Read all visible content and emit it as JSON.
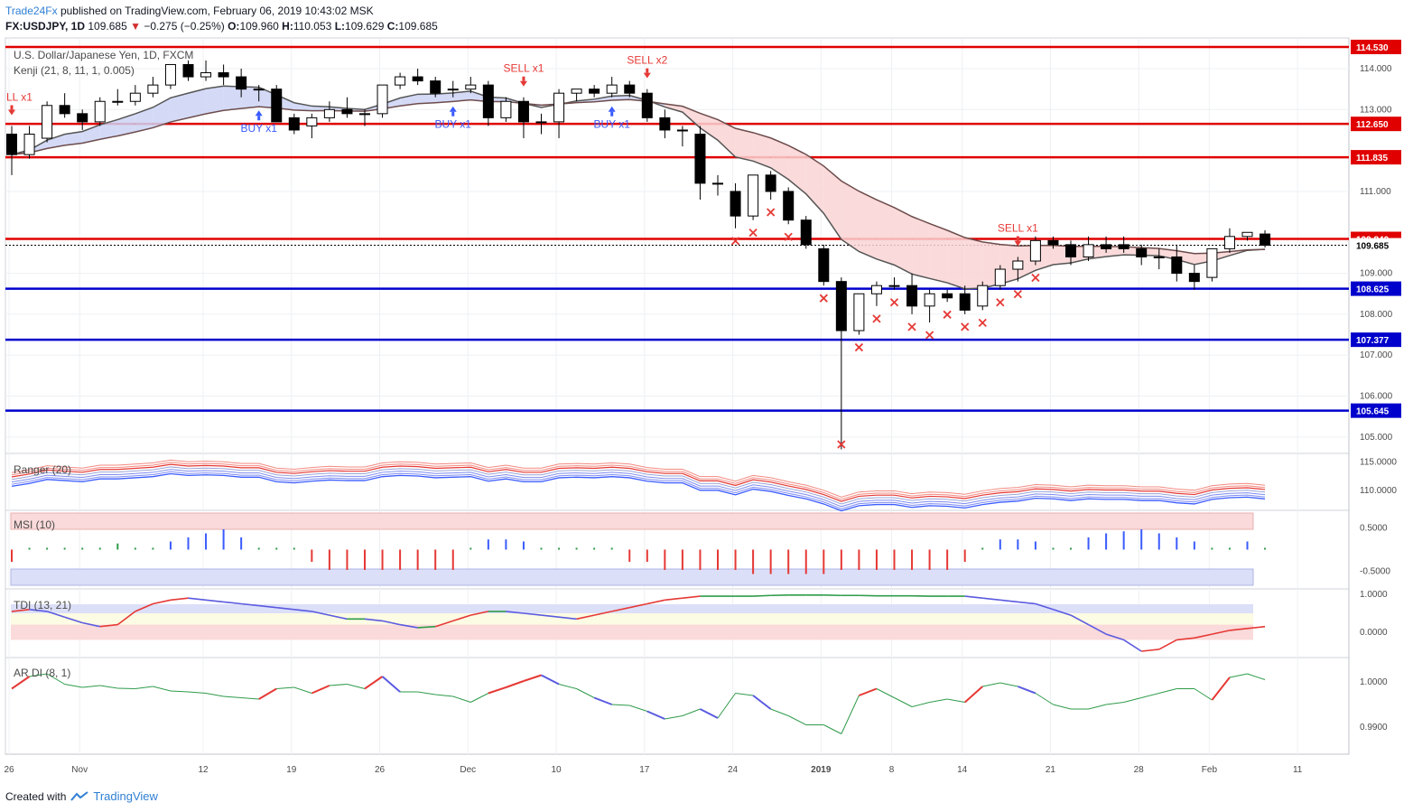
{
  "header": {
    "brand": "Trade24Fx",
    "published": "published on TradingView.com, February 06, 2019 10:43:02 MSK",
    "symbol": "FX:USDJPY, 1D",
    "last": "109.685",
    "change": "−0.275 (−0.25%)",
    "o_label": "O:",
    "o": "109.960",
    "h_label": "H:",
    "h": "110.053",
    "l_label": "L:",
    "l": "109.629",
    "c_label": "C:",
    "c": "109.685"
  },
  "legend": {
    "main_title": "U.S. Dollar/Japanese Yen, 1D, FXCM",
    "kenji": "Kenji (21, 8, 11, 1, 0.005)",
    "ranger": "Ranger (20)",
    "msi": "MSI (10)",
    "tdi": "TDI (13, 21)",
    "ardi": "AR DI (8, 1)"
  },
  "footer": {
    "created_with": "Created with",
    "tradingview": "TradingView"
  },
  "colors": {
    "up_candle": "#ffffff",
    "down_candle": "#000000",
    "resistance": "#e00000",
    "support": "#0000cc",
    "sell": "#e53935",
    "buy": "#3a5bff",
    "band_upper": "#f28b82",
    "band_lower": "#7f8cf0"
  },
  "chart_data": {
    "type": "candlestick",
    "symbol": "U.S. Dollar/Japanese Yen, 1D, FXCM",
    "ylim": [
      104.5,
      115.0
    ],
    "price_ticks": [
      "114.000",
      "113.000",
      "111.000",
      "109.000",
      "108.000",
      "107.000",
      "106.000",
      "105.000"
    ],
    "x_ticks": [
      "26",
      "Nov",
      "12",
      "19",
      "26",
      "Dec",
      "10",
      "17",
      "24",
      "2019",
      "8",
      "14",
      "21",
      "28",
      "Feb",
      "11"
    ],
    "horizontal_levels": [
      {
        "value": 114.53,
        "label": "114.530",
        "kind": "resistance"
      },
      {
        "value": 112.65,
        "label": "112.650",
        "kind": "resistance"
      },
      {
        "value": 111.835,
        "label": "111.835",
        "kind": "resistance"
      },
      {
        "value": 109.84,
        "label": "109.840",
        "kind": "resistance"
      },
      {
        "value": 109.685,
        "label": "109.685",
        "kind": "last"
      },
      {
        "value": 108.625,
        "label": "108.625",
        "kind": "support"
      },
      {
        "value": 107.377,
        "label": "107.377",
        "kind": "support"
      },
      {
        "value": 105.645,
        "label": "105.645",
        "kind": "support"
      }
    ],
    "signals": [
      {
        "text": "LL x1",
        "type": "sell",
        "bar": 0
      },
      {
        "text": "BUY x1",
        "type": "buy",
        "bar": 14
      },
      {
        "text": "SELL x1",
        "type": "sell",
        "bar": 29
      },
      {
        "text": "BUY x1",
        "type": "buy",
        "bar": 25
      },
      {
        "text": "SELL x2",
        "type": "sell",
        "bar": 36
      },
      {
        "text": "BUY x1",
        "type": "buy",
        "bar": 34
      },
      {
        "text": "SELL x1",
        "type": "sell",
        "bar": 57
      }
    ],
    "candles": [
      {
        "o": 112.4,
        "h": 112.6,
        "l": 111.4,
        "c": 111.9
      },
      {
        "o": 111.9,
        "h": 112.6,
        "l": 111.8,
        "c": 112.4
      },
      {
        "o": 112.3,
        "h": 113.2,
        "l": 112.2,
        "c": 113.1
      },
      {
        "o": 113.1,
        "h": 113.4,
        "l": 112.8,
        "c": 112.9
      },
      {
        "o": 112.9,
        "h": 113.0,
        "l": 112.5,
        "c": 112.7
      },
      {
        "o": 112.7,
        "h": 113.3,
        "l": 112.6,
        "c": 113.2
      },
      {
        "o": 113.2,
        "h": 113.5,
        "l": 113.1,
        "c": 113.2
      },
      {
        "o": 113.2,
        "h": 113.6,
        "l": 113.1,
        "c": 113.4
      },
      {
        "o": 113.4,
        "h": 113.8,
        "l": 113.3,
        "c": 113.6
      },
      {
        "o": 113.6,
        "h": 114.1,
        "l": 113.5,
        "c": 114.1
      },
      {
        "o": 114.1,
        "h": 114.2,
        "l": 113.7,
        "c": 113.8
      },
      {
        "o": 113.8,
        "h": 114.2,
        "l": 113.7,
        "c": 113.9
      },
      {
        "o": 113.9,
        "h": 114.1,
        "l": 113.6,
        "c": 113.8
      },
      {
        "o": 113.8,
        "h": 114.0,
        "l": 113.3,
        "c": 113.5
      },
      {
        "o": 113.5,
        "h": 113.6,
        "l": 113.2,
        "c": 113.5
      },
      {
        "o": 113.5,
        "h": 113.6,
        "l": 112.8,
        "c": 112.7
      },
      {
        "o": 112.8,
        "h": 112.9,
        "l": 112.4,
        "c": 112.5
      },
      {
        "o": 112.6,
        "h": 112.9,
        "l": 112.3,
        "c": 112.8
      },
      {
        "o": 112.8,
        "h": 113.2,
        "l": 112.7,
        "c": 113.0
      },
      {
        "o": 113.0,
        "h": 113.3,
        "l": 112.8,
        "c": 112.9
      },
      {
        "o": 112.9,
        "h": 113.0,
        "l": 112.6,
        "c": 112.9
      },
      {
        "o": 112.9,
        "h": 113.6,
        "l": 112.8,
        "c": 113.6
      },
      {
        "o": 113.6,
        "h": 113.9,
        "l": 113.5,
        "c": 113.8
      },
      {
        "o": 113.8,
        "h": 114.0,
        "l": 113.6,
        "c": 113.7
      },
      {
        "o": 113.7,
        "h": 113.8,
        "l": 113.3,
        "c": 113.4
      },
      {
        "o": 113.5,
        "h": 113.7,
        "l": 113.3,
        "c": 113.5
      },
      {
        "o": 113.5,
        "h": 113.8,
        "l": 113.4,
        "c": 113.6
      },
      {
        "o": 113.6,
        "h": 113.7,
        "l": 112.6,
        "c": 112.8
      },
      {
        "o": 112.8,
        "h": 113.3,
        "l": 112.7,
        "c": 113.2
      },
      {
        "o": 113.2,
        "h": 113.3,
        "l": 112.3,
        "c": 112.7
      },
      {
        "o": 112.7,
        "h": 112.9,
        "l": 112.4,
        "c": 112.7
      },
      {
        "o": 112.7,
        "h": 113.5,
        "l": 112.3,
        "c": 113.4
      },
      {
        "o": 113.4,
        "h": 113.5,
        "l": 113.2,
        "c": 113.5
      },
      {
        "o": 113.5,
        "h": 113.6,
        "l": 113.3,
        "c": 113.4
      },
      {
        "o": 113.4,
        "h": 113.8,
        "l": 113.3,
        "c": 113.6
      },
      {
        "o": 113.6,
        "h": 113.7,
        "l": 113.3,
        "c": 113.4
      },
      {
        "o": 113.4,
        "h": 113.5,
        "l": 112.7,
        "c": 112.8
      },
      {
        "o": 112.8,
        "h": 113.0,
        "l": 112.3,
        "c": 112.5
      },
      {
        "o": 112.5,
        "h": 112.6,
        "l": 112.1,
        "c": 112.5
      },
      {
        "o": 112.4,
        "h": 112.6,
        "l": 110.8,
        "c": 111.2
      },
      {
        "o": 111.2,
        "h": 111.4,
        "l": 110.9,
        "c": 111.2
      },
      {
        "o": 111.0,
        "h": 111.2,
        "l": 110.1,
        "c": 110.4
      },
      {
        "o": 110.4,
        "h": 111.4,
        "l": 110.3,
        "c": 111.4
      },
      {
        "o": 111.4,
        "h": 111.5,
        "l": 110.8,
        "c": 111.0
      },
      {
        "o": 111.0,
        "h": 111.1,
        "l": 110.2,
        "c": 110.3
      },
      {
        "o": 110.3,
        "h": 110.4,
        "l": 109.6,
        "c": 109.7
      },
      {
        "o": 109.6,
        "h": 109.7,
        "l": 108.7,
        "c": 108.8
      },
      {
        "o": 108.8,
        "h": 108.9,
        "l": 104.7,
        "c": 107.6
      },
      {
        "o": 107.6,
        "h": 108.5,
        "l": 107.5,
        "c": 108.5
      },
      {
        "o": 108.5,
        "h": 108.8,
        "l": 108.2,
        "c": 108.7
      },
      {
        "o": 108.7,
        "h": 108.9,
        "l": 108.6,
        "c": 108.7
      },
      {
        "o": 108.7,
        "h": 109.0,
        "l": 108.0,
        "c": 108.2
      },
      {
        "o": 108.2,
        "h": 108.6,
        "l": 107.8,
        "c": 108.5
      },
      {
        "o": 108.5,
        "h": 108.6,
        "l": 108.3,
        "c": 108.4
      },
      {
        "o": 108.5,
        "h": 108.7,
        "l": 108.0,
        "c": 108.1
      },
      {
        "o": 108.2,
        "h": 108.8,
        "l": 108.1,
        "c": 108.7
      },
      {
        "o": 108.7,
        "h": 109.2,
        "l": 108.6,
        "c": 109.1
      },
      {
        "o": 109.1,
        "h": 109.4,
        "l": 108.8,
        "c": 109.3
      },
      {
        "o": 109.3,
        "h": 109.9,
        "l": 109.2,
        "c": 109.8
      },
      {
        "o": 109.8,
        "h": 109.9,
        "l": 109.6,
        "c": 109.7
      },
      {
        "o": 109.7,
        "h": 109.8,
        "l": 109.2,
        "c": 109.4
      },
      {
        "o": 109.4,
        "h": 109.9,
        "l": 109.3,
        "c": 109.7
      },
      {
        "o": 109.7,
        "h": 109.9,
        "l": 109.5,
        "c": 109.6
      },
      {
        "o": 109.7,
        "h": 109.9,
        "l": 109.5,
        "c": 109.6
      },
      {
        "o": 109.6,
        "h": 109.7,
        "l": 109.2,
        "c": 109.4
      },
      {
        "o": 109.4,
        "h": 109.6,
        "l": 109.1,
        "c": 109.4
      },
      {
        "o": 109.4,
        "h": 109.7,
        "l": 108.8,
        "c": 109.0
      },
      {
        "o": 109.0,
        "h": 109.2,
        "l": 108.6,
        "c": 108.8
      },
      {
        "o": 108.9,
        "h": 109.6,
        "l": 108.8,
        "c": 109.6
      },
      {
        "o": 109.6,
        "h": 110.1,
        "l": 109.5,
        "c": 109.9
      },
      {
        "o": 109.9,
        "h": 110.0,
        "l": 109.8,
        "c": 110.0
      },
      {
        "o": 109.96,
        "h": 110.053,
        "l": 109.629,
        "c": 109.685
      }
    ],
    "panels": [
      {
        "name": "Ranger (20)",
        "ticks": [
          "115.0000",
          "110.0000"
        ]
      },
      {
        "name": "MSI (10)",
        "ticks": [
          "0.5000",
          "-0.5000"
        ]
      },
      {
        "name": "TDI (13, 21)",
        "ticks": [
          "1.0000",
          "0.0000"
        ]
      },
      {
        "name": "AR DI (8, 1)",
        "ticks": [
          "1.0000",
          "0.9900"
        ]
      }
    ],
    "msi": [
      -0.3,
      0.1,
      0.05,
      0,
      0.05,
      0.1,
      0.15,
      0.1,
      0.1,
      0.2,
      0.3,
      0.4,
      0.5,
      0.3,
      0,
      0.05,
      0.05,
      -0.3,
      -0.5,
      -0.5,
      -0.5,
      -0.5,
      -0.5,
      -0.5,
      -0.5,
      -0.5,
      0.05,
      0.25,
      0.25,
      0.2,
      0.05,
      0.05,
      0.05,
      0.05,
      0.1,
      -0.3,
      -0.3,
      -0.5,
      -0.5,
      -0.5,
      -0.5,
      -0.5,
      -0.6,
      -0.6,
      -0.6,
      -0.6,
      -0.6,
      -0.5,
      -0.5,
      -0.5,
      -0.5,
      -0.5,
      -0.5,
      -0.5,
      -0.3,
      0.05,
      0.25,
      0.25,
      0.2,
      0,
      0,
      0.3,
      0.4,
      0.45,
      0.5,
      0.4,
      0.3,
      0.2,
      0,
      0.1,
      0.2,
      0.05
    ],
    "tdi": [
      0.55,
      0.6,
      0.55,
      0.4,
      0.25,
      0.15,
      0.2,
      0.55,
      0.75,
      0.85,
      0.9,
      0.85,
      0.8,
      0.75,
      0.7,
      0.65,
      0.6,
      0.55,
      0.45,
      0.35,
      0.35,
      0.3,
      0.2,
      0.12,
      0.15,
      0.3,
      0.45,
      0.55,
      0.55,
      0.5,
      0.45,
      0.4,
      0.35,
      0.45,
      0.55,
      0.65,
      0.75,
      0.85,
      0.9,
      0.95,
      0.95,
      0.95,
      0.95,
      0.97,
      0.98,
      0.98,
      0.98,
      0.97,
      0.97,
      0.96,
      0.96,
      0.96,
      0.95,
      0.95,
      0.95,
      0.9,
      0.85,
      0.8,
      0.75,
      0.6,
      0.45,
      0.2,
      -0.05,
      -0.2,
      -0.5,
      -0.45,
      -0.2,
      -0.15,
      -0.05,
      0.05,
      0.1,
      0.15
    ],
    "ardi": [
      0.9985,
      1.0012,
      1.0018,
      0.9995,
      0.9988,
      0.9992,
      0.9986,
      0.9985,
      0.999,
      0.998,
      0.9978,
      0.9975,
      0.9968,
      0.9965,
      0.9962,
      0.9985,
      0.9988,
      0.9975,
      0.9992,
      0.9995,
      0.9985,
      1.0012,
      0.9978,
      0.9978,
      0.9972,
      0.9968,
      0.9955,
      0.9975,
      0.9988,
      1.0002,
      1.0015,
      0.9995,
      0.9985,
      0.9965,
      0.995,
      0.9948,
      0.9935,
      0.9918,
      0.9925,
      0.994,
      0.992,
      0.9975,
      0.997,
      0.994,
      0.9925,
      0.9905,
      0.9905,
      0.9885,
      0.997,
      0.9985,
      0.9965,
      0.9945,
      0.9955,
      0.9962,
      0.9955,
      0.999,
      0.9998,
      0.999,
      0.9975,
      0.995,
      0.994,
      0.994,
      0.995,
      0.9955,
      0.9965,
      0.9975,
      0.9985,
      0.9985,
      0.996,
      1.001,
      1.0018,
      1.0005
    ]
  }
}
